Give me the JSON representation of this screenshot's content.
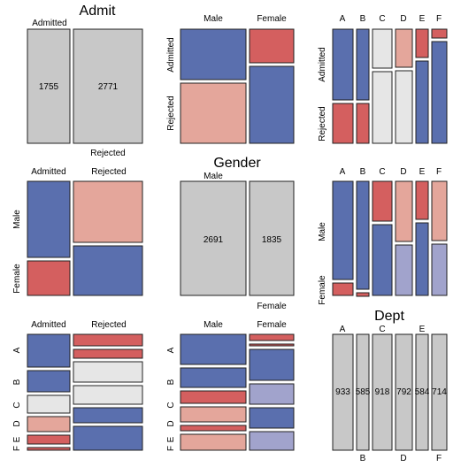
{
  "colors": {
    "tile_gray": "#c8c8c8",
    "light_gray": "#e6e6e6",
    "blue": "#5a6fae",
    "light_blue": "#a1a3cc",
    "red": "#d45f5f",
    "pink": "#e4a69b",
    "border": "#222222"
  },
  "chart_data": [
    {
      "type": "mosaic",
      "panel": "diag-admit",
      "title": "Admit",
      "labels": [
        "Admitted",
        "Rejected"
      ],
      "values": [
        1755,
        2771
      ]
    },
    {
      "type": "mosaic",
      "panel": "diag-gender",
      "title": "Gender",
      "labels": [
        "Male",
        "Female"
      ],
      "values": [
        2691,
        1835
      ]
    },
    {
      "type": "mosaic",
      "panel": "diag-dept",
      "title": "Dept",
      "labels": [
        "A",
        "B",
        "C",
        "D",
        "E",
        "F"
      ],
      "values": [
        933,
        585,
        918,
        792,
        584,
        714
      ]
    },
    {
      "type": "mosaic",
      "panel": "gender-by-admit",
      "columns": [
        "Male",
        "Female"
      ],
      "rows": [
        "Admitted",
        "Rejected"
      ]
    },
    {
      "type": "mosaic",
      "panel": "dept-by-admit",
      "columns": [
        "A",
        "B",
        "C",
        "D",
        "E",
        "F"
      ],
      "rows": [
        "Admitted",
        "Rejected"
      ]
    },
    {
      "type": "mosaic",
      "panel": "admit-by-gender",
      "columns": [
        "Admitted",
        "Rejected"
      ],
      "rows": [
        "Male",
        "Female"
      ]
    },
    {
      "type": "mosaic",
      "panel": "dept-by-gender",
      "columns": [
        "A",
        "B",
        "C",
        "D",
        "E",
        "F"
      ],
      "rows": [
        "Male",
        "Female"
      ]
    },
    {
      "type": "mosaic",
      "panel": "admit-by-dept",
      "columns": [
        "Admitted",
        "Rejected"
      ],
      "rows": [
        "A",
        "B",
        "C",
        "D",
        "E",
        "F"
      ]
    },
    {
      "type": "mosaic",
      "panel": "gender-by-dept",
      "columns": [
        "Male",
        "Female"
      ],
      "rows": [
        "A",
        "B",
        "C",
        "D",
        "E",
        "F"
      ]
    }
  ]
}
